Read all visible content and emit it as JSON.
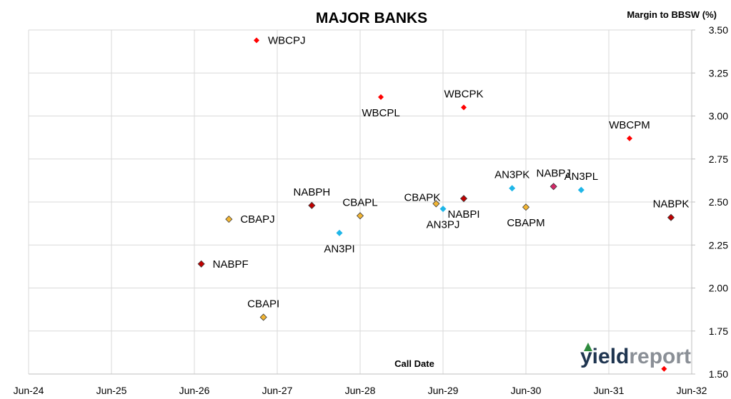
{
  "chart_data": {
    "type": "scatter",
    "title": "MAJOR BANKS",
    "xlabel": "Call Date",
    "ylabel": "Margin to BBSW (%)",
    "grid": true,
    "y_axis_side": "right",
    "ylim": [
      1.5,
      3.5
    ],
    "y_ticks": [
      "1.50",
      "1.75",
      "2.00",
      "2.25",
      "2.50",
      "2.75",
      "3.00",
      "3.25",
      "3.50"
    ],
    "x_ticks": [
      "Jun-24",
      "Jun-25",
      "Jun-26",
      "Jun-27",
      "Jun-28",
      "Jun-29",
      "Jun-30",
      "Jun-31",
      "Jun-32"
    ],
    "xlim": [
      "2024-06",
      "2032-06"
    ],
    "points": [
      {
        "label": "WBCPJ",
        "x": "2027-03",
        "y": 3.44,
        "color": "#ff0000",
        "label_pos": "right"
      },
      {
        "label": "WBCPL",
        "x": "2028-09",
        "y": 3.11,
        "color": "#ff0000",
        "label_pos": "below"
      },
      {
        "label": "WBCPK",
        "x": "2029-09",
        "y": 3.05,
        "color": "#ff0000",
        "label_pos": "above"
      },
      {
        "label": "WBCPM",
        "x": "2031-09",
        "y": 2.87,
        "color": "#ff0000",
        "label_pos": "above"
      },
      {
        "label": "NABPF",
        "x": "2026-07",
        "y": 2.14,
        "color": "#c00000",
        "label_pos": "right"
      },
      {
        "label": "NABPH",
        "x": "2027-11",
        "y": 2.48,
        "color": "#c00000",
        "label_pos": "above"
      },
      {
        "label": "NABPI",
        "x": "2029-09",
        "y": 2.52,
        "color": "#c00000",
        "label_pos": "below"
      },
      {
        "label": "NABPJ",
        "x": "2030-10",
        "y": 2.59,
        "color": "#d62768",
        "label_pos": "above"
      },
      {
        "label": "NABPK",
        "x": "2032-03",
        "y": 2.41,
        "color": "#c00000",
        "label_pos": "above"
      },
      {
        "label": "CBAPJ",
        "x": "2026-11",
        "y": 2.4,
        "color": "#f2b533",
        "label_pos": "right"
      },
      {
        "label": "CBAPI",
        "x": "2027-04",
        "y": 1.83,
        "color": "#f2b533",
        "label_pos": "above"
      },
      {
        "label": "CBAPL",
        "x": "2028-06",
        "y": 2.42,
        "color": "#f2b533",
        "label_pos": "above"
      },
      {
        "label": "CBAPK",
        "x": "2029-05",
        "y": 2.49,
        "color": "#f2b533",
        "label_pos": "left"
      },
      {
        "label": "CBAPM",
        "x": "2030-06",
        "y": 2.47,
        "color": "#f2b533",
        "label_pos": "below"
      },
      {
        "label": "AN3PI",
        "x": "2028-03",
        "y": 2.32,
        "color": "#1fb6e8",
        "label_pos": "below"
      },
      {
        "label": "AN3PJ",
        "x": "2029-06",
        "y": 2.46,
        "color": "#1fb6e8",
        "label_pos": "below"
      },
      {
        "label": "AN3PK",
        "x": "2030-04",
        "y": 2.58,
        "color": "#1fb6e8",
        "label_pos": "above"
      },
      {
        "label": "AN3PL",
        "x": "2031-02",
        "y": 2.57,
        "color": "#1fb6e8",
        "label_pos": "above"
      },
      {
        "label": "",
        "x": "2032-02",
        "y": 1.53,
        "color": "#ff0000",
        "label_pos": "none"
      }
    ]
  },
  "watermark": {
    "part1": "yield",
    "part2": "report"
  }
}
